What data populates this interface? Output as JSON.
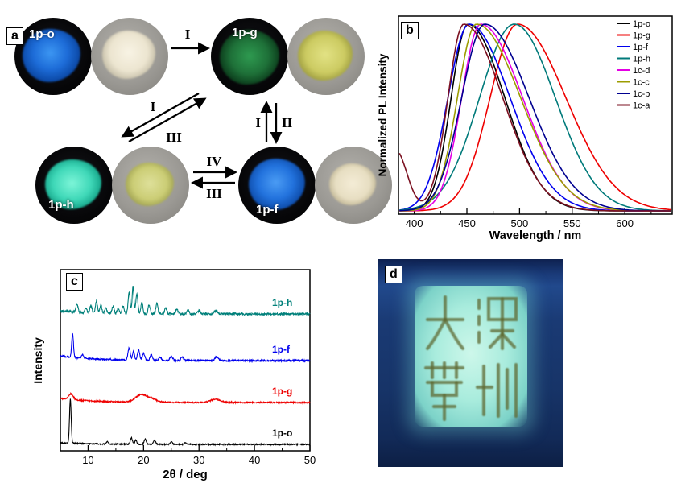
{
  "panel_a": {
    "label": "a",
    "samples": [
      {
        "id": "1p-o"
      },
      {
        "id": "1p-g"
      },
      {
        "id": "1p-h"
      },
      {
        "id": "1p-f"
      }
    ],
    "arrow_labels": {
      "top": "I",
      "diag_upper": "I",
      "diag_lower": "III",
      "vert_left": "I",
      "vert_right": "II",
      "bottom_upper": "IV",
      "bottom_lower": "III"
    }
  },
  "panel_b": {
    "label": "b"
  },
  "panel_c": {
    "label": "c"
  },
  "panel_d": {
    "label": "d",
    "seal_text": "深圳大學"
  },
  "chart_data": [
    {
      "type": "line",
      "panel": "b",
      "title": "",
      "xlabel": "Wavelength / nm",
      "ylabel": "Normalized PL Intensity",
      "xlim": [
        385,
        645
      ],
      "xticks": [
        400,
        450,
        500,
        550,
        600
      ],
      "ylim": [
        0,
        1
      ],
      "grid": false,
      "legend_position": "top-right",
      "series": [
        {
          "name": "1p-o",
          "color": "#000000",
          "peak_nm": 451,
          "sigma_left": 16,
          "sigma_right": 35
        },
        {
          "name": "1p-g",
          "color": "#ee0000",
          "peak_nm": 498,
          "sigma_left": 26,
          "sigma_right": 46
        },
        {
          "name": "1p-f",
          "color": "#0000ee",
          "peak_nm": 452,
          "sigma_left": 20,
          "sigma_right": 39
        },
        {
          "name": "1p-h",
          "color": "#007a7a",
          "peak_nm": 495,
          "sigma_left": 33,
          "sigma_right": 39
        },
        {
          "name": "1c-d",
          "color": "#e400e4",
          "peak_nm": 463,
          "sigma_left": 18,
          "sigma_right": 40
        },
        {
          "name": "1c-c",
          "color": "#9c9c00",
          "peak_nm": 459,
          "sigma_left": 18,
          "sigma_right": 42
        },
        {
          "name": "1c-b",
          "color": "#000090",
          "peak_nm": 467,
          "sigma_left": 22,
          "sigma_right": 42
        },
        {
          "name": "1c-a",
          "color": "#7b1020",
          "peak_nm": 447,
          "sigma_left": 15,
          "sigma_right": 37,
          "edge_rise": 0.33
        }
      ]
    },
    {
      "type": "line",
      "panel": "c",
      "title": "",
      "xlabel": "2θ / deg",
      "ylabel": "Intensity",
      "xlim": [
        5,
        50
      ],
      "xticks": [
        10,
        20,
        30,
        40,
        50
      ],
      "grid": false,
      "traces": [
        {
          "name": "1p-h",
          "color": "#00807a",
          "noise": 1.3,
          "low_angle_bg": 4,
          "peaks": [
            [
              8,
              10,
              0.18
            ],
            [
              9.6,
              5,
              0.18
            ],
            [
              10.5,
              9,
              0.18
            ],
            [
              11.5,
              14,
              0.18
            ],
            [
              12.3,
              10,
              0.18
            ],
            [
              13.2,
              7,
              0.18
            ],
            [
              14.5,
              9,
              0.18
            ],
            [
              15.4,
              6,
              0.18
            ],
            [
              16.3,
              10,
              0.18
            ],
            [
              17.4,
              26,
              0.18
            ],
            [
              18.1,
              34,
              0.16
            ],
            [
              18.8,
              24,
              0.18
            ],
            [
              19.7,
              14,
              0.18
            ],
            [
              21,
              11,
              0.18
            ],
            [
              22.4,
              13,
              0.18
            ],
            [
              24,
              7,
              0.2
            ],
            [
              26,
              6,
              0.2
            ],
            [
              28,
              5,
              0.2
            ],
            [
              30,
              4,
              0.25
            ],
            [
              33,
              4,
              0.3
            ]
          ]
        },
        {
          "name": "1p-f",
          "color": "#0000ee",
          "noise": 1.0,
          "low_angle_bg": 6,
          "peaks": [
            [
              7.2,
              30,
              0.16
            ],
            [
              9,
              4,
              0.2
            ],
            [
              17.4,
              15,
              0.2
            ],
            [
              18.2,
              11,
              0.18
            ],
            [
              19.1,
              13,
              0.2
            ],
            [
              20,
              9,
              0.2
            ],
            [
              21.4,
              7,
              0.2
            ],
            [
              23,
              4,
              0.2
            ],
            [
              25,
              5,
              0.25
            ],
            [
              27,
              4,
              0.25
            ],
            [
              33.2,
              5,
              0.3
            ]
          ]
        },
        {
          "name": "1p-g",
          "color": "#ee0000",
          "noise": 0.8,
          "low_angle_bg": 5,
          "peaks": [
            [
              6.9,
              7,
              0.4
            ],
            [
              19.5,
              9,
              1.0
            ],
            [
              21.5,
              4,
              0.9
            ],
            [
              33,
              4,
              0.9
            ]
          ]
        },
        {
          "name": "1p-o",
          "color": "#000000",
          "noise": 0.7,
          "low_angle_bg": 2,
          "peaks": [
            [
              6.8,
              55,
              0.15
            ],
            [
              13.5,
              3,
              0.2
            ],
            [
              17.8,
              8,
              0.18
            ],
            [
              18.6,
              5,
              0.18
            ],
            [
              20.3,
              7,
              0.18
            ],
            [
              22,
              5,
              0.2
            ],
            [
              25,
              3,
              0.2
            ],
            [
              27.5,
              2,
              0.2
            ]
          ]
        }
      ]
    }
  ]
}
